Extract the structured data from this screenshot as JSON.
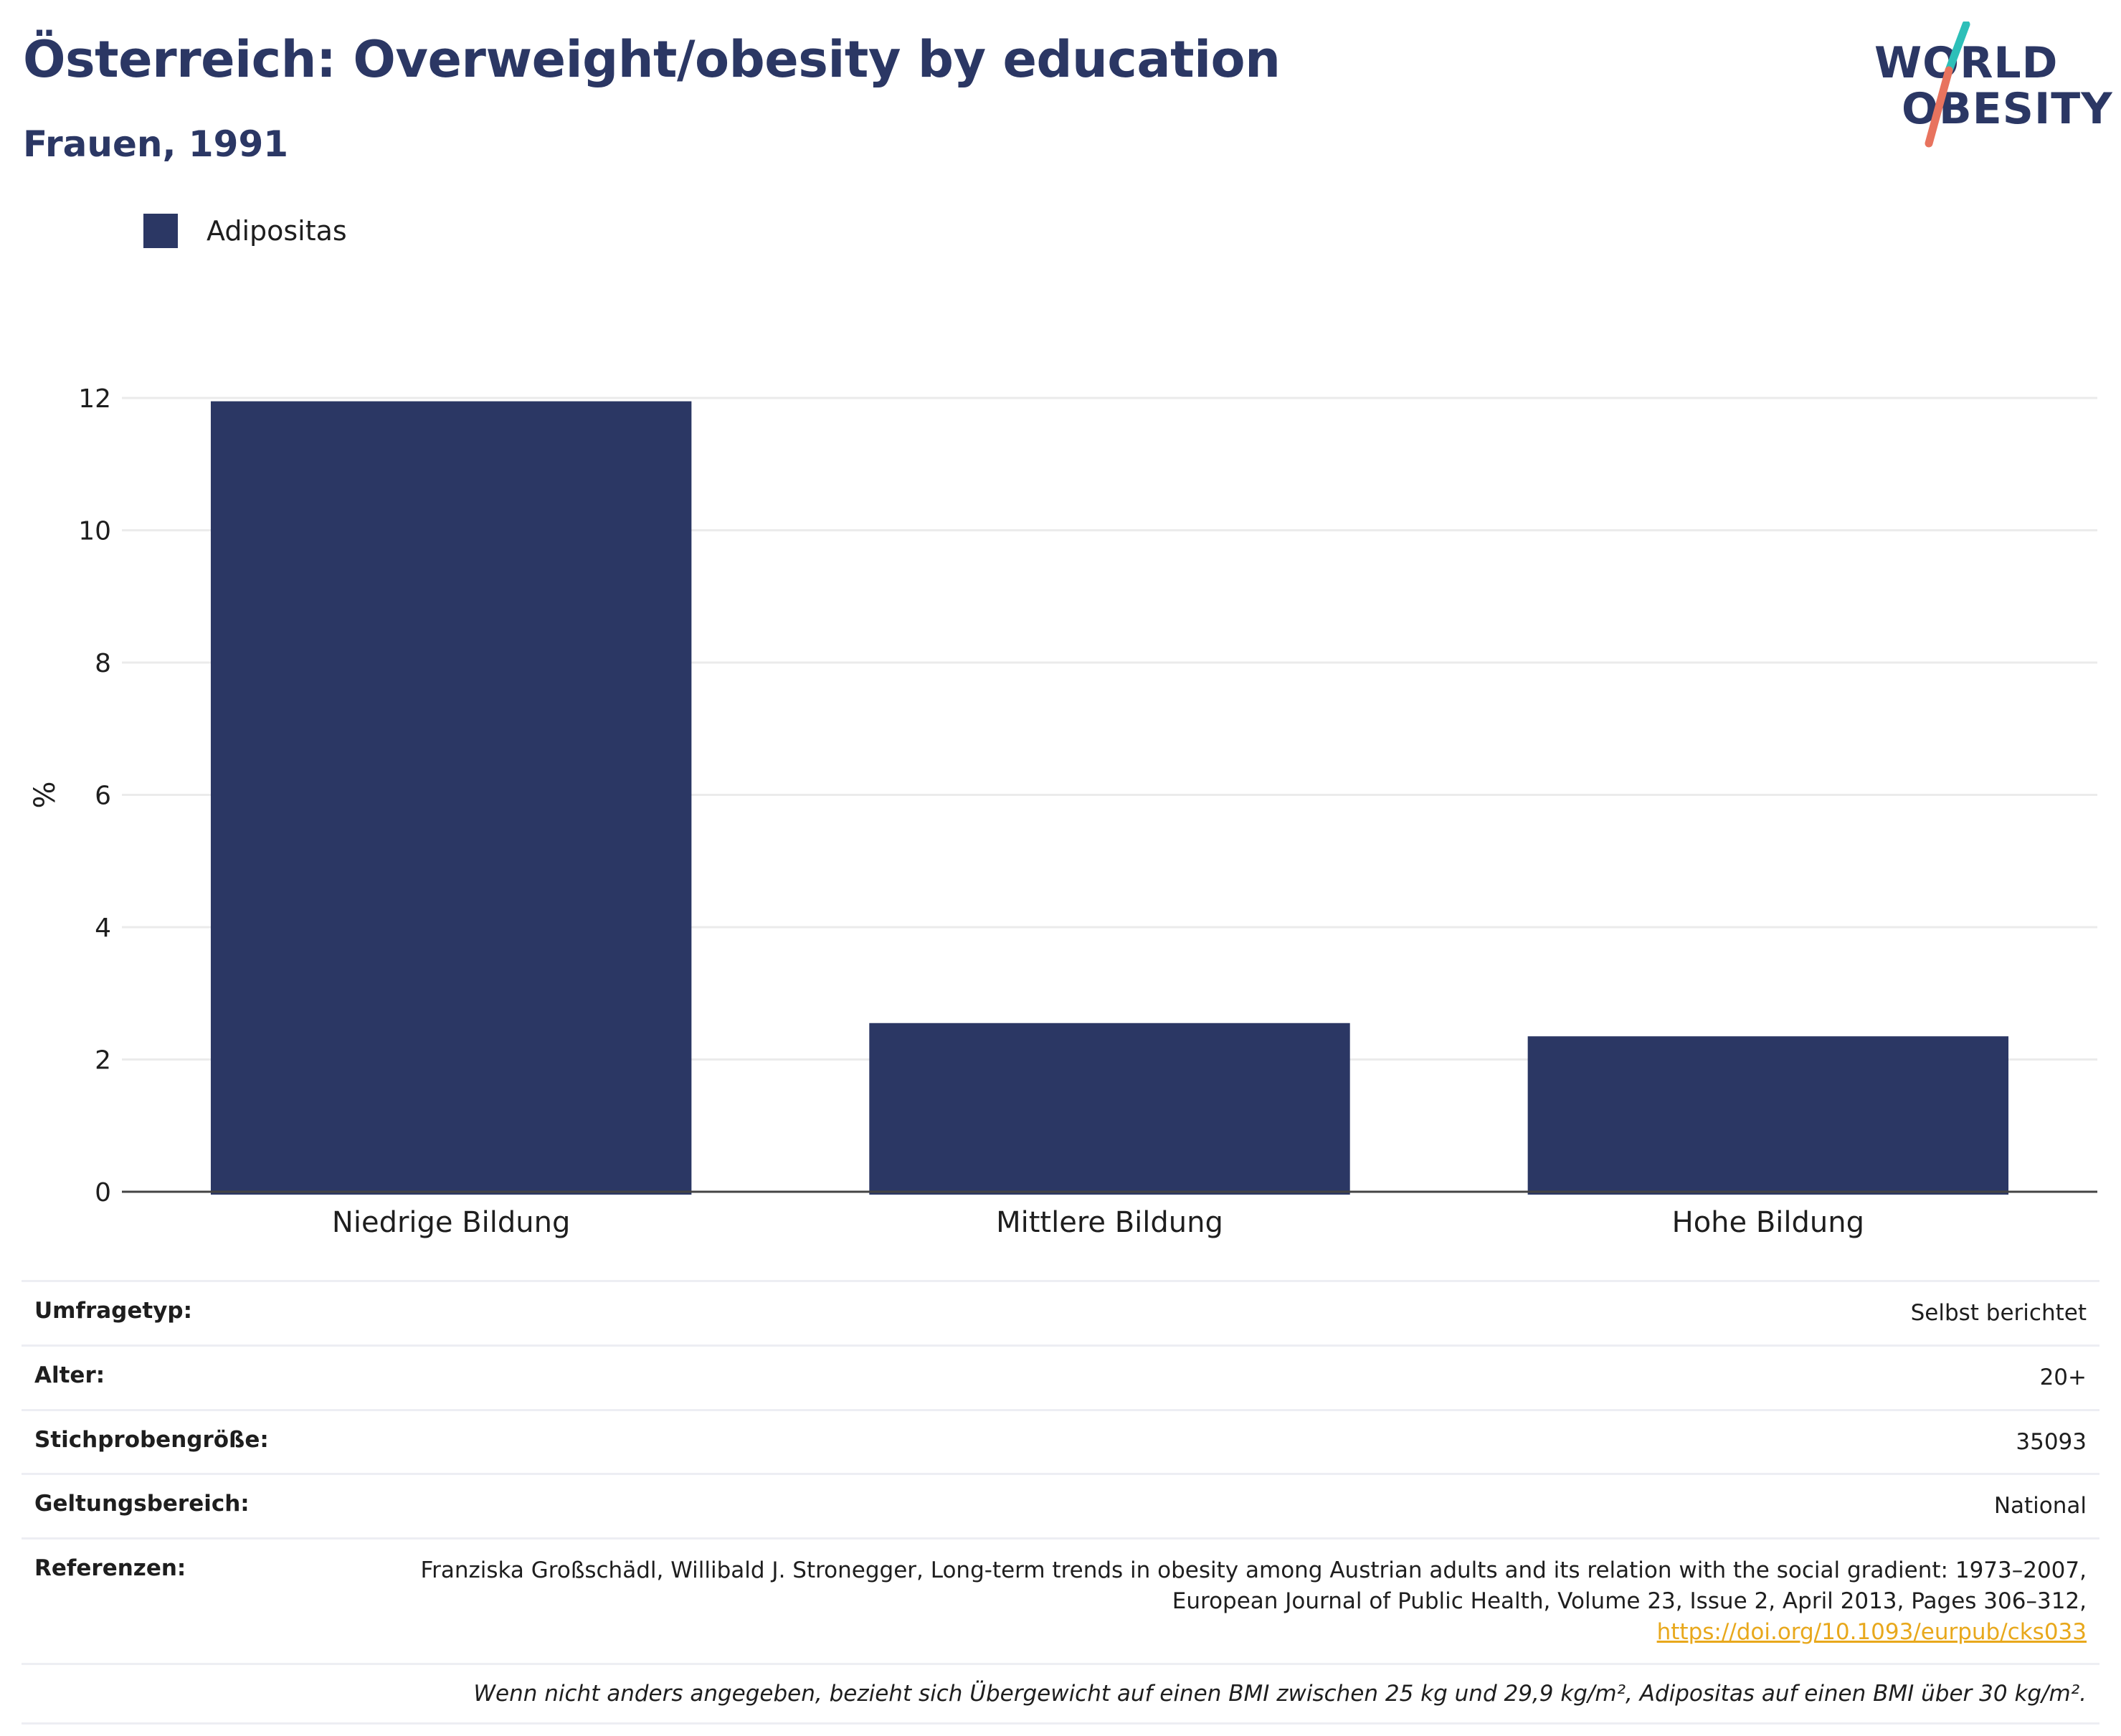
{
  "header": {
    "title": "Österreich: Overweight/obesity by education",
    "subtitle": "Frauen, 1991"
  },
  "logo": {
    "line1": "WORLD",
    "line2": "OBESITY",
    "accent_teal": "#2dbfb8",
    "accent_coral": "#e8735e"
  },
  "colors": {
    "primary": "#2b3764",
    "grid": "#ebebeb",
    "axis": "#444444",
    "link": "#e8a81c"
  },
  "chart_data": {
    "type": "bar",
    "categories": [
      "Niedrige Bildung",
      "Mittlere Bildung",
      "Hohe Bildung"
    ],
    "series": [
      {
        "name": "Adipositas",
        "values": [
          11.95,
          2.55,
          2.35
        ],
        "color": "#2b3764"
      }
    ],
    "ylabel": "%",
    "ylim": [
      0,
      12
    ],
    "yticks": [
      0,
      2,
      4,
      6,
      8,
      10,
      12
    ],
    "grid": true,
    "legend_position": "top-left"
  },
  "info": {
    "rows": [
      {
        "key": "Umfragetyp:",
        "value": "Selbst berichtet"
      },
      {
        "key": "Alter:",
        "value": "20+"
      },
      {
        "key": "Stichprobengröße:",
        "value": "35093"
      },
      {
        "key": "Geltungsbereich:",
        "value": "National"
      }
    ],
    "references_key": "Referenzen:",
    "references_text": "Franziska Großschädl, Willibald J. Stronegger, Long-term trends in obesity among Austrian adults and its relation with the social gradient: 1973–2007, European Journal of Public Health, Volume 23, Issue 2, April 2013, Pages 306–312,",
    "references_link": "https://doi.org/10.1093/eurpub/cks033",
    "note": "Wenn nicht anders angegeben, bezieht sich Übergewicht auf einen BMI zwischen 25 kg und 29,9 kg/m², Adipositas auf einen BMI über 30 kg/m²."
  }
}
